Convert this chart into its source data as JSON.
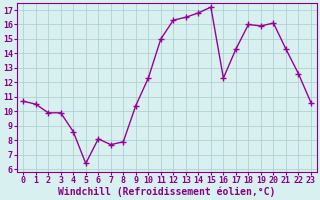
{
  "x": [
    0,
    1,
    2,
    3,
    4,
    5,
    6,
    7,
    8,
    9,
    10,
    11,
    12,
    13,
    14,
    15,
    16,
    17,
    18,
    19,
    20,
    21,
    22,
    23
  ],
  "y": [
    10.7,
    10.5,
    9.9,
    9.9,
    8.6,
    6.4,
    8.1,
    7.7,
    7.9,
    10.4,
    12.3,
    15.0,
    16.3,
    16.5,
    16.8,
    17.2,
    12.3,
    14.3,
    16.0,
    15.9,
    16.1,
    14.3,
    12.6,
    10.6
  ],
  "line_color": "#990099",
  "marker": "+",
  "marker_size": 4,
  "bg_color": "#d8f0f0",
  "grid_color": "#aacccc",
  "xlabel": "Windchill (Refroidissement éolien,°C)",
  "xlim": [
    -0.5,
    23.5
  ],
  "ylim": [
    5.8,
    17.5
  ],
  "yticks": [
    6,
    7,
    8,
    9,
    10,
    11,
    12,
    13,
    14,
    15,
    16,
    17
  ],
  "xticks": [
    0,
    1,
    2,
    3,
    4,
    5,
    6,
    7,
    8,
    9,
    10,
    11,
    12,
    13,
    14,
    15,
    16,
    17,
    18,
    19,
    20,
    21,
    22,
    23
  ],
  "tick_fontsize": 6.0,
  "xlabel_fontsize": 7.0,
  "line_width": 1.0,
  "marker_edge_width": 1.0
}
